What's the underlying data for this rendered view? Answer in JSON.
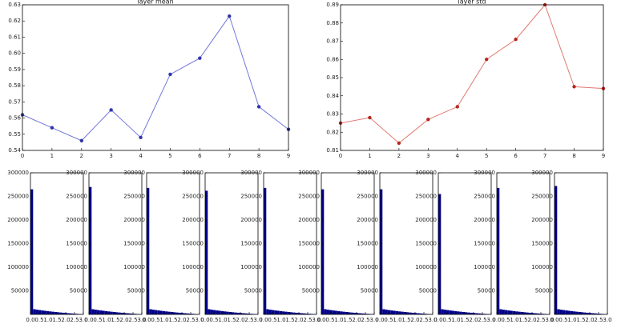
{
  "chart_data": [
    {
      "type": "line",
      "title": "layer mean",
      "x": [
        0,
        1,
        2,
        3,
        4,
        5,
        6,
        7,
        8,
        9
      ],
      "values": [
        0.562,
        0.554,
        0.546,
        0.565,
        0.548,
        0.587,
        0.597,
        0.623,
        0.567,
        0.553
      ],
      "color": "#7177d9",
      "marker_color": "#2f34a8",
      "xlim": [
        0,
        9
      ],
      "xticks": [
        0,
        1,
        2,
        3,
        4,
        5,
        6,
        7,
        8,
        9
      ],
      "ylim": [
        0.54,
        0.63
      ],
      "yticks": [
        0.54,
        0.55,
        0.56,
        0.57,
        0.58,
        0.59,
        {
          "value": 0.6,
          "label": "0.60"
        },
        0.61,
        0.62,
        0.63
      ]
    },
    {
      "type": "line",
      "title": "layer std",
      "x": [
        0,
        1,
        2,
        3,
        4,
        5,
        6,
        7,
        8,
        9
      ],
      "values": [
        0.825,
        0.828,
        0.814,
        0.827,
        0.834,
        0.86,
        0.871,
        0.89,
        0.845,
        0.844
      ],
      "color": "#e07a72",
      "marker_color": "#b3261e",
      "xlim": [
        0,
        9
      ],
      "xticks": [
        0,
        1,
        2,
        3,
        4,
        5,
        6,
        7,
        8,
        9
      ],
      "ylim": [
        0.81,
        0.89
      ],
      "yticks": [
        0.81,
        0.82,
        0.83,
        0.84,
        0.85,
        0.86,
        0.87,
        0.88,
        0.89
      ]
    },
    {
      "type": "histogram",
      "color": "#00008b",
      "bins": [
        0,
        0.15,
        0.3,
        0.45,
        0.6,
        0.75,
        0.9,
        1.05,
        1.2,
        1.35,
        1.5,
        1.65,
        1.8,
        1.95,
        2.1,
        2.25,
        2.4,
        2.55,
        2.7,
        2.85,
        3
      ],
      "values": [
        265000,
        11000,
        10000,
        9200,
        8400,
        7700,
        7000,
        6300,
        5700,
        5100,
        4500,
        4000,
        3500,
        3000,
        2500,
        2100,
        1700,
        1300,
        900,
        500
      ],
      "xlim": [
        0,
        3
      ],
      "xticks": [
        {
          "value": 0,
          "label": "0.0"
        },
        0.5,
        {
          "value": 1,
          "label": "1.0"
        },
        1.5,
        {
          "value": 2,
          "label": "2.0"
        },
        2.5,
        {
          "value": 3,
          "label": "3.0"
        }
      ],
      "ylim": [
        0,
        300000
      ],
      "yticks": [
        50000,
        100000,
        150000,
        200000,
        250000,
        300000
      ]
    },
    {
      "type": "histogram",
      "color": "#00008b",
      "bins": [
        0,
        0.15,
        0.3,
        0.45,
        0.6,
        0.75,
        0.9,
        1.05,
        1.2,
        1.35,
        1.5,
        1.65,
        1.8,
        1.95,
        2.1,
        2.25,
        2.4,
        2.55,
        2.7,
        2.85,
        3
      ],
      "values": [
        270000,
        11000,
        10000,
        9200,
        8400,
        7700,
        7000,
        6300,
        5700,
        5100,
        4500,
        4000,
        3500,
        3000,
        2500,
        2100,
        1700,
        1300,
        900,
        500
      ],
      "xlim": [
        0,
        3
      ],
      "xticks": [
        {
          "value": 0,
          "label": "0.0"
        },
        0.5,
        {
          "value": 1,
          "label": "1.0"
        },
        1.5,
        {
          "value": 2,
          "label": "2.0"
        },
        2.5,
        {
          "value": 3,
          "label": "3.0"
        }
      ],
      "ylim": [
        0,
        300000
      ],
      "yticks": [
        50000,
        100000,
        150000,
        200000,
        250000,
        300000
      ]
    },
    {
      "type": "histogram",
      "color": "#00008b",
      "bins": [
        0,
        0.15,
        0.3,
        0.45,
        0.6,
        0.75,
        0.9,
        1.05,
        1.2,
        1.35,
        1.5,
        1.65,
        1.8,
        1.95,
        2.1,
        2.25,
        2.4,
        2.55,
        2.7,
        2.85,
        3
      ],
      "values": [
        268000,
        11000,
        10000,
        9200,
        8400,
        7700,
        7000,
        6300,
        5700,
        5100,
        4500,
        4000,
        3500,
        3000,
        2500,
        2100,
        1700,
        1300,
        900,
        500
      ],
      "xlim": [
        0,
        3
      ],
      "xticks": [
        {
          "value": 0,
          "label": "0.0"
        },
        0.5,
        {
          "value": 1,
          "label": "1.0"
        },
        1.5,
        {
          "value": 2,
          "label": "2.0"
        },
        2.5,
        {
          "value": 3,
          "label": "3.0"
        }
      ],
      "ylim": [
        0,
        300000
      ],
      "yticks": [
        50000,
        100000,
        150000,
        200000,
        250000,
        300000
      ]
    },
    {
      "type": "histogram",
      "color": "#00008b",
      "bins": [
        0,
        0.15,
        0.3,
        0.45,
        0.6,
        0.75,
        0.9,
        1.05,
        1.2,
        1.35,
        1.5,
        1.65,
        1.8,
        1.95,
        2.1,
        2.25,
        2.4,
        2.55,
        2.7,
        2.85,
        3
      ],
      "values": [
        262000,
        11000,
        10000,
        9200,
        8400,
        7700,
        7000,
        6300,
        5700,
        5100,
        4500,
        4000,
        3500,
        3000,
        2500,
        2100,
        1700,
        1300,
        900,
        500
      ],
      "xlim": [
        0,
        3
      ],
      "xticks": [
        {
          "value": 0,
          "label": "0.0"
        },
        0.5,
        {
          "value": 1,
          "label": "1.0"
        },
        1.5,
        {
          "value": 2,
          "label": "2.0"
        },
        2.5,
        {
          "value": 3,
          "label": "3.0"
        }
      ],
      "ylim": [
        0,
        300000
      ],
      "yticks": [
        50000,
        100000,
        150000,
        200000,
        250000,
        300000
      ]
    },
    {
      "type": "histogram",
      "color": "#00008b",
      "bins": [
        0,
        0.15,
        0.3,
        0.45,
        0.6,
        0.75,
        0.9,
        1.05,
        1.2,
        1.35,
        1.5,
        1.65,
        1.8,
        1.95,
        2.1,
        2.25,
        2.4,
        2.55,
        2.7,
        2.85,
        3
      ],
      "values": [
        268000,
        11000,
        10000,
        9200,
        8400,
        7700,
        7000,
        6300,
        5700,
        5100,
        4500,
        4000,
        3500,
        3000,
        2500,
        2100,
        1700,
        1300,
        900,
        500
      ],
      "xlim": [
        0,
        3
      ],
      "xticks": [
        {
          "value": 0,
          "label": "0.0"
        },
        0.5,
        {
          "value": 1,
          "label": "1.0"
        },
        1.5,
        {
          "value": 2,
          "label": "2.0"
        },
        2.5,
        {
          "value": 3,
          "label": "3.0"
        }
      ],
      "ylim": [
        0,
        300000
      ],
      "yticks": [
        50000,
        100000,
        150000,
        200000,
        250000,
        300000
      ]
    },
    {
      "type": "histogram",
      "color": "#00008b",
      "bins": [
        0,
        0.15,
        0.3,
        0.45,
        0.6,
        0.75,
        0.9,
        1.05,
        1.2,
        1.35,
        1.5,
        1.65,
        1.8,
        1.95,
        2.1,
        2.25,
        2.4,
        2.55,
        2.7,
        2.85,
        3
      ],
      "values": [
        265000,
        11000,
        10000,
        9200,
        8400,
        7700,
        7000,
        6300,
        5700,
        5100,
        4500,
        4000,
        3500,
        3000,
        2500,
        2100,
        1700,
        1300,
        900,
        500
      ],
      "xlim": [
        0,
        3
      ],
      "xticks": [
        {
          "value": 0,
          "label": "0.0"
        },
        0.5,
        {
          "value": 1,
          "label": "1.0"
        },
        1.5,
        {
          "value": 2,
          "label": "2.0"
        },
        2.5,
        {
          "value": 3,
          "label": "3.0"
        }
      ],
      "ylim": [
        0,
        300000
      ],
      "yticks": [
        50000,
        100000,
        150000,
        200000,
        250000,
        300000
      ]
    },
    {
      "type": "histogram",
      "color": "#00008b",
      "bins": [
        0,
        0.15,
        0.3,
        0.45,
        0.6,
        0.75,
        0.9,
        1.05,
        1.2,
        1.35,
        1.5,
        1.65,
        1.8,
        1.95,
        2.1,
        2.25,
        2.4,
        2.55,
        2.7,
        2.85,
        3
      ],
      "values": [
        265000,
        11000,
        10000,
        9200,
        8400,
        7700,
        7000,
        6300,
        5700,
        5100,
        4500,
        4000,
        3500,
        3000,
        2500,
        2100,
        1700,
        1300,
        900,
        500
      ],
      "xlim": [
        0,
        3
      ],
      "xticks": [
        {
          "value": 0,
          "label": "0.0"
        },
        0.5,
        {
          "value": 1,
          "label": "1.0"
        },
        1.5,
        {
          "value": 2,
          "label": "2.0"
        },
        2.5,
        {
          "value": 3,
          "label": "3.0"
        }
      ],
      "ylim": [
        0,
        300000
      ],
      "yticks": [
        50000,
        100000,
        150000,
        200000,
        250000,
        300000
      ]
    },
    {
      "type": "histogram",
      "color": "#00008b",
      "bins": [
        0,
        0.15,
        0.3,
        0.45,
        0.6,
        0.75,
        0.9,
        1.05,
        1.2,
        1.35,
        1.5,
        1.65,
        1.8,
        1.95,
        2.1,
        2.25,
        2.4,
        2.55,
        2.7,
        2.85,
        3
      ],
      "values": [
        255000,
        11000,
        10000,
        9200,
        8400,
        7700,
        7000,
        6300,
        5700,
        5100,
        4500,
        4000,
        3500,
        3000,
        2500,
        2100,
        1700,
        1300,
        900,
        500
      ],
      "xlim": [
        0,
        3
      ],
      "xticks": [
        {
          "value": 0,
          "label": "0.0"
        },
        0.5,
        {
          "value": 1,
          "label": "1.0"
        },
        1.5,
        {
          "value": 2,
          "label": "2.0"
        },
        2.5,
        {
          "value": 3,
          "label": "3.0"
        }
      ],
      "ylim": [
        0,
        300000
      ],
      "yticks": [
        50000,
        100000,
        150000,
        200000,
        250000,
        300000
      ]
    },
    {
      "type": "histogram",
      "color": "#00008b",
      "bins": [
        0,
        0.15,
        0.3,
        0.45,
        0.6,
        0.75,
        0.9,
        1.05,
        1.2,
        1.35,
        1.5,
        1.65,
        1.8,
        1.95,
        2.1,
        2.25,
        2.4,
        2.55,
        2.7,
        2.85,
        3
      ],
      "values": [
        268000,
        11000,
        10000,
        9200,
        8400,
        7700,
        7000,
        6300,
        5700,
        5100,
        4500,
        4000,
        3500,
        3000,
        2500,
        2100,
        1700,
        1300,
        900,
        500
      ],
      "xlim": [
        0,
        3
      ],
      "xticks": [
        {
          "value": 0,
          "label": "0.0"
        },
        0.5,
        {
          "value": 1,
          "label": "1.0"
        },
        1.5,
        {
          "value": 2,
          "label": "2.0"
        },
        2.5,
        {
          "value": 3,
          "label": "3.0"
        }
      ],
      "ylim": [
        0,
        300000
      ],
      "yticks": [
        50000,
        100000,
        150000,
        200000,
        250000,
        300000
      ]
    },
    {
      "type": "histogram",
      "color": "#00008b",
      "bins": [
        0,
        0.15,
        0.3,
        0.45,
        0.6,
        0.75,
        0.9,
        1.05,
        1.2,
        1.35,
        1.5,
        1.65,
        1.8,
        1.95,
        2.1,
        2.25,
        2.4,
        2.55,
        2.7,
        2.85,
        3
      ],
      "values": [
        272000,
        11000,
        10000,
        9200,
        8400,
        7700,
        7000,
        6300,
        5700,
        5100,
        4500,
        4000,
        3500,
        3000,
        2500,
        2100,
        1700,
        1300,
        900,
        500
      ],
      "xlim": [
        0,
        3
      ],
      "xticks": [
        {
          "value": 0,
          "label": "0.0"
        },
        0.5,
        {
          "value": 1,
          "label": "1.0"
        },
        1.5,
        {
          "value": 2,
          "label": "2.0"
        },
        2.5,
        {
          "value": 3,
          "label": "3.0"
        }
      ],
      "ylim": [
        0,
        300000
      ],
      "yticks": [
        50000,
        100000,
        150000,
        200000,
        250000,
        300000
      ]
    }
  ]
}
